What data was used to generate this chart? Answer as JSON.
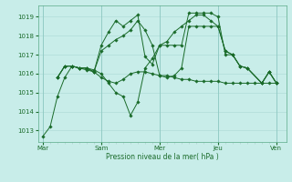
{
  "bg_color": "#c8ede9",
  "grid_color": "#b0ddd8",
  "line_color": "#1a6b2a",
  "text_color": "#1a6b2a",
  "xlabel": "Pression niveau de la mer( hPa )",
  "xtick_labels": [
    "Mar",
    "Sam",
    "Mer",
    "Jeu",
    "Ven"
  ],
  "xtick_positions": [
    0,
    48,
    96,
    144,
    192
  ],
  "ylim": [
    1012.4,
    1019.6
  ],
  "yticks": [
    1013,
    1014,
    1015,
    1016,
    1017,
    1018,
    1019
  ],
  "xlim": [
    -4,
    200
  ],
  "series": [
    {
      "x": [
        0,
        6,
        12,
        18,
        24,
        30,
        36,
        42,
        48,
        54,
        60,
        66,
        72,
        78,
        84,
        90,
        96,
        102,
        108,
        114,
        120,
        126,
        132,
        138,
        144,
        150,
        156,
        162,
        168,
        174,
        180,
        186,
        192
      ],
      "y": [
        1012.7,
        1013.2,
        1014.8,
        1015.8,
        1016.4,
        1016.3,
        1016.3,
        1016.1,
        1015.8,
        1015.6,
        1015.5,
        1015.7,
        1016.0,
        1016.1,
        1016.1,
        1016.0,
        1015.9,
        1015.9,
        1015.8,
        1015.7,
        1015.7,
        1015.6,
        1015.6,
        1015.6,
        1015.6,
        1015.5,
        1015.5,
        1015.5,
        1015.5,
        1015.5,
        1015.5,
        1015.5,
        1015.5
      ]
    },
    {
      "x": [
        12,
        18,
        24,
        30,
        36,
        42,
        48,
        54,
        60,
        66,
        72,
        78,
        84,
        90,
        96,
        102,
        108,
        114,
        120,
        126,
        132,
        138,
        144,
        150,
        156,
        162,
        168,
        180,
        186,
        192
      ],
      "y": [
        1015.8,
        1016.4,
        1016.4,
        1016.3,
        1016.3,
        1016.2,
        1016.0,
        1015.5,
        1015.0,
        1014.8,
        1013.8,
        1014.5,
        1016.3,
        1016.8,
        1017.5,
        1017.7,
        1018.2,
        1018.5,
        1018.8,
        1019.1,
        1019.1,
        1018.8,
        1018.5,
        1017.2,
        1017.0,
        1016.4,
        1016.3,
        1015.5,
        1016.1,
        1015.5
      ]
    },
    {
      "x": [
        12,
        18,
        24,
        30,
        36,
        42,
        48,
        54,
        60,
        66,
        72,
        78,
        84,
        90,
        96,
        102,
        108,
        114,
        120,
        126,
        132,
        138,
        144,
        150,
        156,
        162,
        168,
        180,
        186,
        192
      ],
      "y": [
        1015.8,
        1016.4,
        1016.4,
        1016.3,
        1016.3,
        1016.1,
        1017.2,
        1017.5,
        1017.8,
        1018.0,
        1018.3,
        1018.8,
        1018.3,
        1017.5,
        1015.9,
        1015.8,
        1015.9,
        1016.3,
        1018.5,
        1018.5,
        1018.5,
        1018.5,
        1018.5,
        1017.2,
        1017.0,
        1016.4,
        1016.3,
        1015.5,
        1016.1,
        1015.5
      ]
    },
    {
      "x": [
        12,
        18,
        24,
        30,
        36,
        42,
        48,
        54,
        60,
        66,
        72,
        78,
        84,
        90,
        96,
        102,
        108,
        114,
        120,
        126,
        132,
        138,
        144,
        150,
        156,
        162,
        168,
        180,
        186,
        192
      ],
      "y": [
        1015.8,
        1016.4,
        1016.4,
        1016.3,
        1016.2,
        1016.1,
        1017.5,
        1018.2,
        1018.8,
        1018.5,
        1018.8,
        1019.1,
        1016.9,
        1016.5,
        1017.5,
        1017.5,
        1017.5,
        1017.5,
        1019.2,
        1019.2,
        1019.2,
        1019.2,
        1019.0,
        1017.0,
        1017.0,
        1016.4,
        1016.3,
        1015.5,
        1016.1,
        1015.5
      ]
    }
  ]
}
